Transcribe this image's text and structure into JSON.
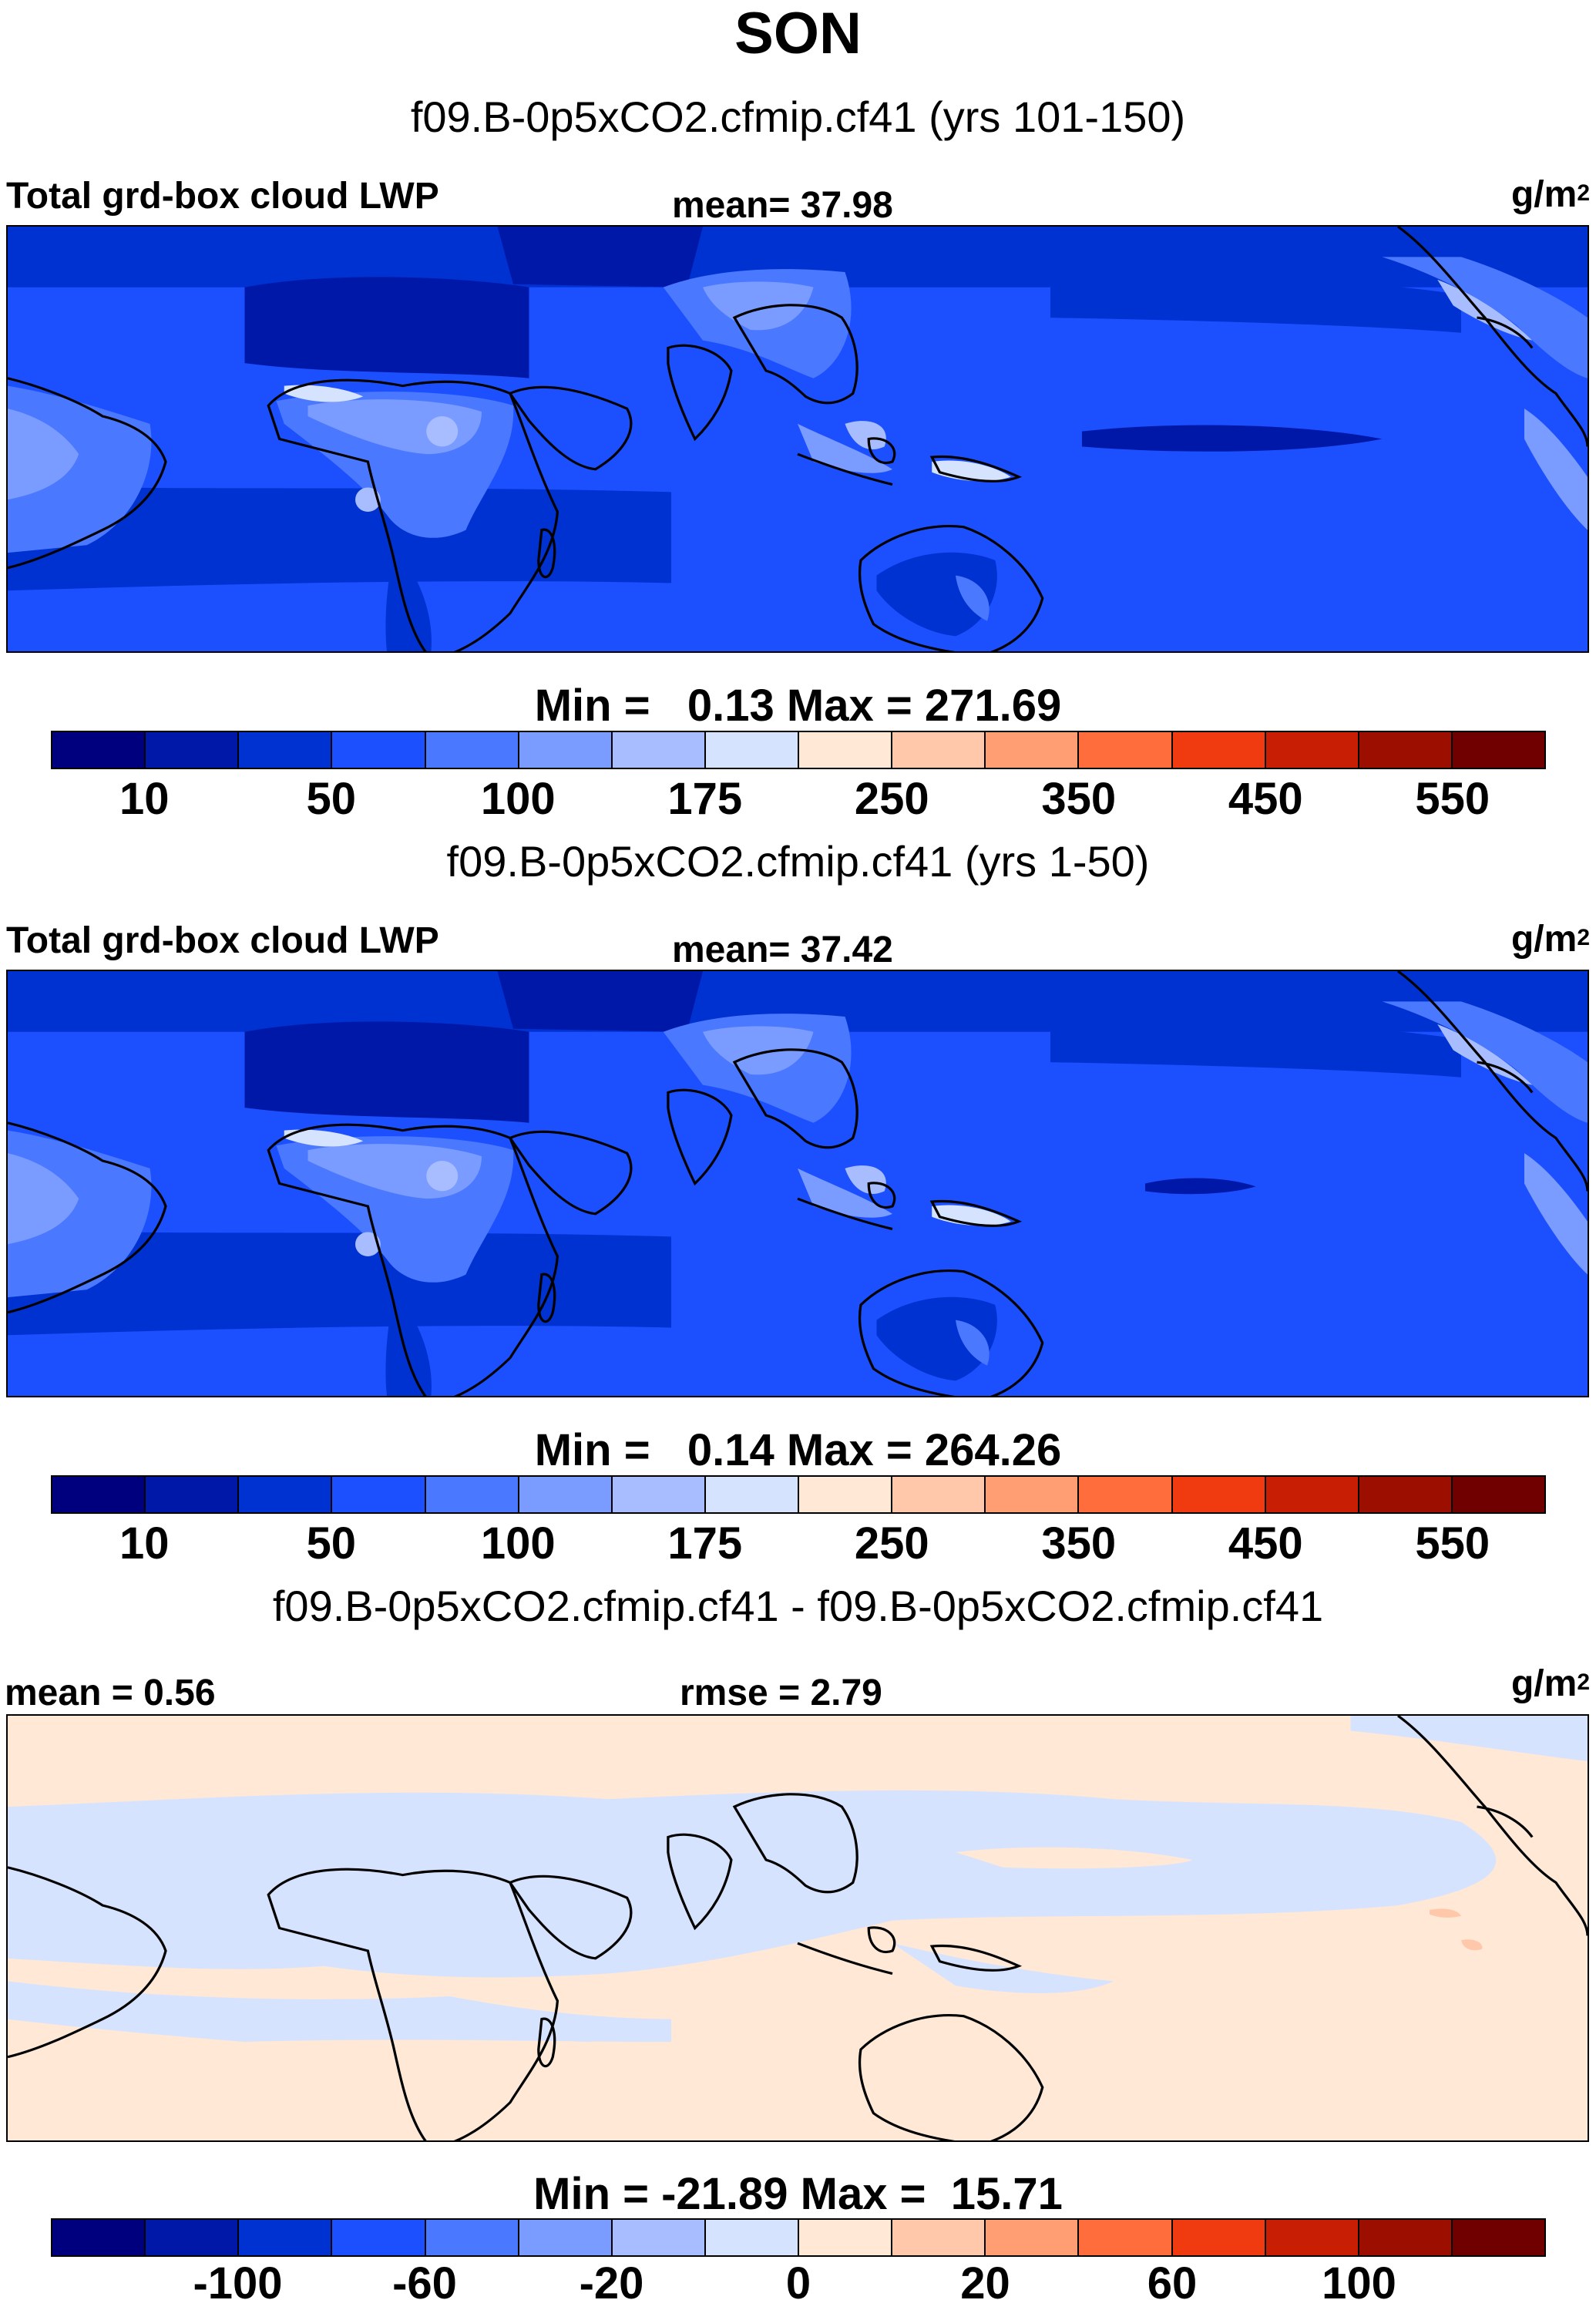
{
  "title": "SON",
  "colors": {
    "abs_scale": [
      "#00007f",
      "#0018a8",
      "#0032d2",
      "#1c50ff",
      "#4a78ff",
      "#7a9bff",
      "#a8bdff",
      "#d6e3ff",
      "#ffe8d6",
      "#ffc8aa",
      "#ff9e72",
      "#ff6d3c",
      "#f03a10",
      "#c81e04",
      "#9c0e00",
      "#700000"
    ],
    "diff_scale": [
      "#00007f",
      "#0018a8",
      "#0032d2",
      "#1c50ff",
      "#4a78ff",
      "#7a9bff",
      "#a8bdff",
      "#d6e3ff",
      "#ffe8d6",
      "#ffc8aa",
      "#ff9e72",
      "#ff6d3c",
      "#f03a10",
      "#c81e04",
      "#9c0e00",
      "#700000"
    ]
  },
  "panels": [
    {
      "case_title": "f09.B-0p5xCO2.cfmip.cf41 (yrs 101-150)",
      "left_label": "Total grd-box cloud LWP",
      "center_label": "mean=  37.98",
      "units_base": "g/m",
      "units_exp": "2",
      "minmax": "Min =   0.13 Max = 271.69",
      "colorbar_ticks": [
        "10",
        "50",
        "100",
        "175",
        "250",
        "350",
        "450",
        "550"
      ]
    },
    {
      "case_title": "f09.B-0p5xCO2.cfmip.cf41 (yrs 1-50)",
      "left_label": "Total grd-box cloud LWP",
      "center_label": "mean=  37.42",
      "units_base": "g/m",
      "units_exp": "2",
      "minmax": "Min =   0.14 Max = 264.26",
      "colorbar_ticks": [
        "10",
        "50",
        "100",
        "175",
        "250",
        "350",
        "450",
        "550"
      ]
    },
    {
      "case_title": "f09.B-0p5xCO2.cfmip.cf41 - f09.B-0p5xCO2.cfmip.cf41",
      "left_label": "mean =   0.56",
      "center_label": "rmse =   2.79",
      "units_base": "g/m",
      "units_exp": "2",
      "minmax": "Min = -21.89 Max =  15.71",
      "colorbar_ticks": [
        "-100",
        "-60",
        "-20",
        "0",
        "20",
        "60",
        "100"
      ]
    }
  ]
}
